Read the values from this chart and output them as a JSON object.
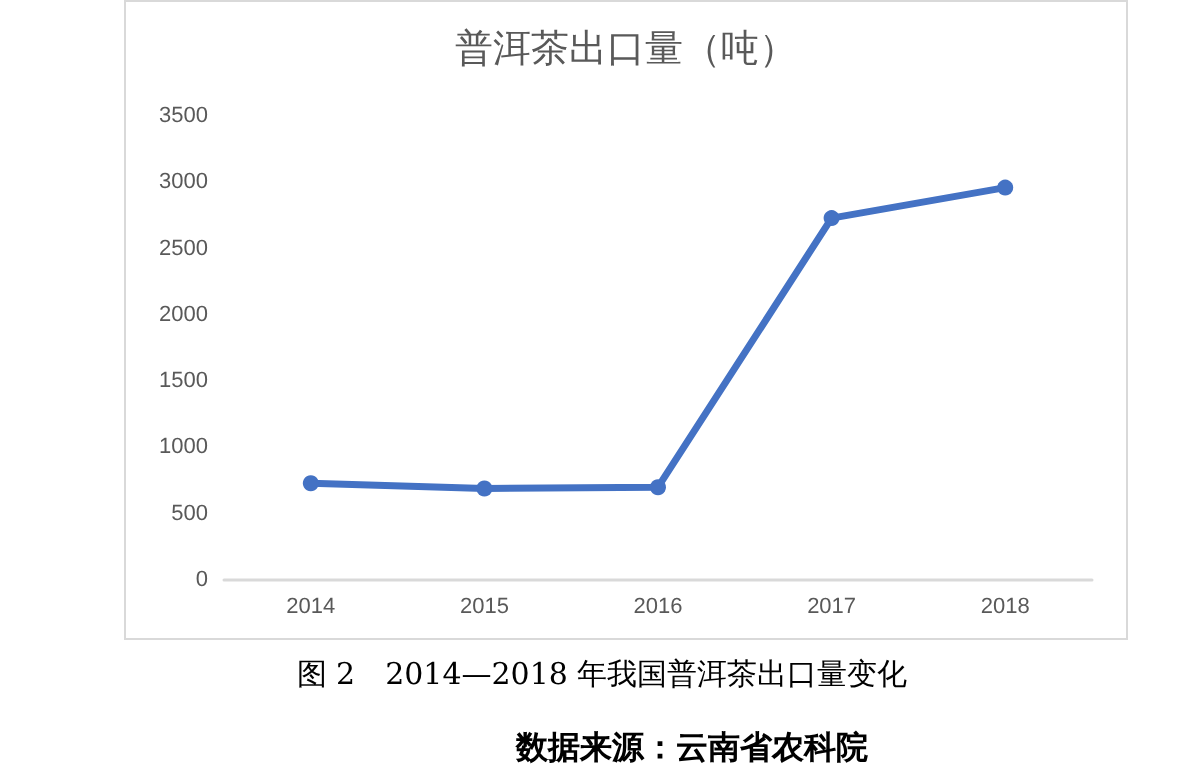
{
  "chart_data": {
    "type": "line",
    "title": "普洱茶出口量（吨）",
    "categories": [
      "2014",
      "2015",
      "2016",
      "2017",
      "2018"
    ],
    "series": [
      {
        "color": "#4472c4",
        "values": [
          730,
          690,
          700,
          2730,
          2960
        ]
      }
    ],
    "ylim": [
      0,
      3500
    ],
    "yticks": [
      0,
      500,
      1000,
      1500,
      2000,
      2500,
      3000,
      3500
    ],
    "grid": false,
    "marker": "circle",
    "line_style": "solid",
    "annotations": [
      "图 2　2014—2018 年我国普洱茶出口量变化",
      "数据来源：云南省农科院"
    ]
  }
}
